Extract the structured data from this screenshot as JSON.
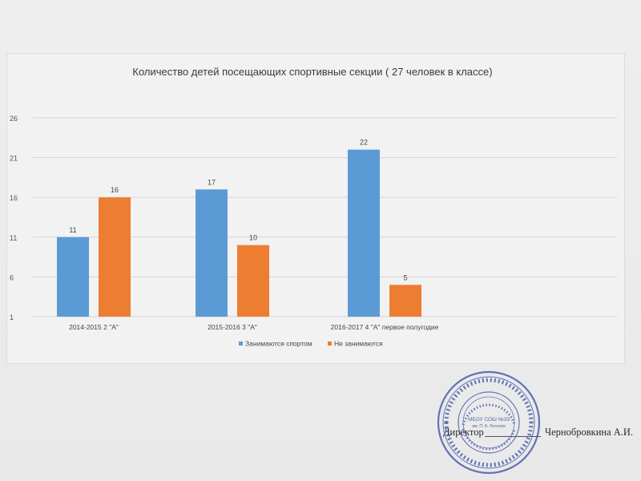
{
  "chart_data": {
    "type": "bar",
    "title": "Количество детей посещающих спортивные секции ( 27 человек в классе)",
    "categories": [
      "2014-2015 2 \"А\"",
      "2015-2016 3 \"А\"",
      "2016-2017 4 \"А\" первое полугодие"
    ],
    "series": [
      {
        "name": "Занимаются спортом",
        "values": [
          11,
          17,
          22
        ],
        "color": "#5b9bd5"
      },
      {
        "name": "Не занимаются",
        "values": [
          16,
          10,
          5
        ],
        "color": "#ed7d31"
      }
    ],
    "yticks": [
      1,
      6,
      11,
      16,
      21,
      26
    ],
    "ylim": [
      1,
      26
    ],
    "grid": true,
    "legend": "bottom",
    "data_labels": true
  },
  "signature": {
    "role": "Директор",
    "name": "Чернобровкина А.И."
  },
  "stamp": {
    "center_text": "МБОУ СОШ №33",
    "center_sub": "им. П. А. Леонова"
  }
}
